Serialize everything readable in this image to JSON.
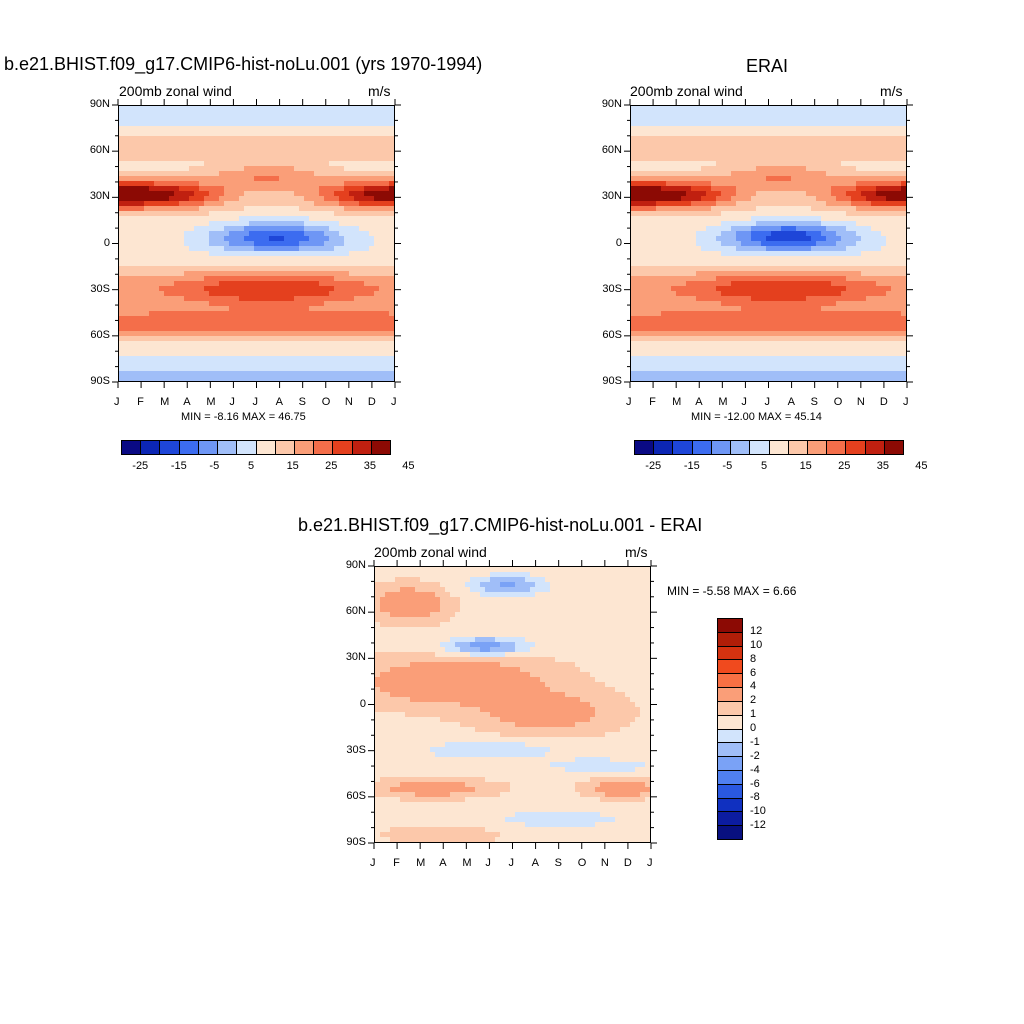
{
  "chart_data": [
    {
      "type": "heatmap",
      "title": "b.e21.BHIST.f09_g17.CMIP6-hist-noLu.001 (yrs 1970-1994)",
      "left_label": "200mb zonal wind",
      "right_label": "m/s",
      "x_ticks": [
        "J",
        "F",
        "M",
        "A",
        "M",
        "J",
        "J",
        "A",
        "S",
        "O",
        "N",
        "D",
        "J"
      ],
      "y_ticks": [
        "90N",
        "60N",
        "30N",
        "0",
        "30S",
        "60S",
        "90S"
      ],
      "ylim": [
        -90,
        90
      ],
      "minmax": "MIN =  -8.16 MAX =  46.75",
      "colorbar_labels": [
        "-25",
        "-15",
        "-5",
        "5",
        "15",
        "25",
        "35",
        "45"
      ]
    },
    {
      "type": "heatmap",
      "title": "ERAI",
      "left_label": "200mb zonal wind",
      "right_label": "m/s",
      "x_ticks": [
        "J",
        "F",
        "M",
        "A",
        "M",
        "J",
        "J",
        "A",
        "S",
        "O",
        "N",
        "D",
        "J"
      ],
      "y_ticks": [
        "90N",
        "60N",
        "30N",
        "0",
        "30S",
        "60S",
        "90S"
      ],
      "ylim": [
        -90,
        90
      ],
      "minmax": "MIN = -12.00 MAX =  45.14",
      "colorbar_labels": [
        "-25",
        "-15",
        "-5",
        "5",
        "15",
        "25",
        "35",
        "45"
      ]
    },
    {
      "type": "heatmap",
      "title": "b.e21.BHIST.f09_g17.CMIP6-hist-noLu.001 - ERAI",
      "left_label": "200mb zonal wind",
      "right_label": "m/s",
      "x_ticks": [
        "J",
        "F",
        "M",
        "A",
        "M",
        "J",
        "J",
        "A",
        "S",
        "O",
        "N",
        "D",
        "J"
      ],
      "y_ticks": [
        "90N",
        "60N",
        "30N",
        "0",
        "30S",
        "60S",
        "90S"
      ],
      "ylim": [
        -90,
        90
      ],
      "minmax": "MIN =  -5.58 MAX =   6.66",
      "colorbar_labels": [
        "12",
        "10",
        "8",
        "6",
        "4",
        "2",
        "1",
        "0",
        "-1",
        "-2",
        "-4",
        "-6",
        "-8",
        "-10",
        "-12"
      ]
    }
  ],
  "colors": {
    "main_scale": [
      "#0a0a84",
      "#0c26b4",
      "#1e46d8",
      "#3c6cf0",
      "#6e96f5",
      "#a0bef8",
      "#d2e4fc",
      "#fde6d2",
      "#fcc8aa",
      "#fa9e78",
      "#f46e4a",
      "#e4401e",
      "#c02010",
      "#8c0a04"
    ],
    "diff_scale": [
      "#8c0a04",
      "#b01e08",
      "#d43210",
      "#f04a1e",
      "#f87044",
      "#fa9e78",
      "#fcc8aa",
      "#fde6d2",
      "#d2e4fc",
      "#a0bef8",
      "#7aa2f6",
      "#5080f0",
      "#2a58e0",
      "#1030c0",
      "#0c1ca0",
      "#081080"
    ]
  }
}
